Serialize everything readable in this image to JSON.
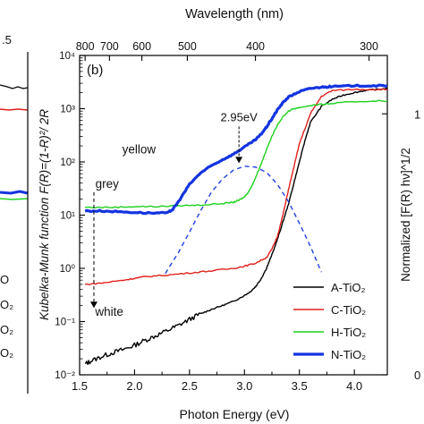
{
  "chart_data": {
    "type": "line",
    "panel_label": "(b)",
    "xlabel": "Photon Energy (eV)",
    "ylabel": "Kubelka-Munk function F(R)=(1-R)²/ 2R",
    "top_axis_label": "Wavelength (nm)",
    "right_axis_label": "Normalized [F(R) hν]^1/2",
    "xlim": [
      1.5,
      4.3
    ],
    "ylim": [
      0.01,
      10000
    ],
    "yscale": "log",
    "x_ticks": [
      "1.5",
      "2.0",
      "2.5",
      "3.0",
      "3.5",
      "4.0"
    ],
    "y_ticks": [
      "10⁻²",
      "10⁻¹",
      "10⁰",
      "10¹",
      "10²",
      "10³",
      "10⁴"
    ],
    "top_ticks": [
      {
        "label": "800",
        "nm": 800
      },
      {
        "label": "700",
        "nm": 700
      },
      {
        "label": "600",
        "nm": 600
      },
      {
        "label": "500",
        "nm": 500
      },
      {
        "label": "400",
        "nm": 400
      },
      {
        "label": "300",
        "nm": 300
      }
    ],
    "right_ticks": [
      "0",
      "1"
    ],
    "legend_placement": "bottom-right",
    "grid": false,
    "series": [
      {
        "name": "A-TiO₂",
        "color": "#000000",
        "width": 1.4,
        "x": [
          1.55,
          1.6,
          1.7,
          1.8,
          1.9,
          2.0,
          2.1,
          2.2,
          2.3,
          2.4,
          2.5,
          2.6,
          2.7,
          2.8,
          2.9,
          3.0,
          3.05,
          3.1,
          3.15,
          3.2,
          3.25,
          3.3,
          3.35,
          3.4,
          3.45,
          3.5,
          3.55,
          3.6,
          3.7,
          3.8,
          3.9,
          4.0,
          4.1,
          4.2,
          4.3
        ],
        "y": [
          0.016,
          0.018,
          0.022,
          0.026,
          0.03,
          0.036,
          0.045,
          0.055,
          0.068,
          0.085,
          0.11,
          0.14,
          0.17,
          0.2,
          0.24,
          0.31,
          0.36,
          0.45,
          0.63,
          1.0,
          1.8,
          3.5,
          7.5,
          16,
          40,
          100,
          250,
          550,
          1100,
          1500,
          1800,
          2000,
          2200,
          2300,
          2400
        ]
      },
      {
        "name": "C-TiO₂",
        "color": "#e0201b",
        "width": 1.4,
        "x": [
          1.55,
          1.7,
          1.9,
          2.0,
          2.1,
          2.3,
          2.5,
          2.7,
          2.9,
          3.0,
          3.1,
          3.2,
          3.25,
          3.3,
          3.35,
          3.4,
          3.45,
          3.5,
          3.6,
          3.7,
          3.8,
          4.0,
          4.2,
          4.3
        ],
        "y": [
          0.5,
          0.53,
          0.6,
          0.65,
          0.7,
          0.75,
          0.82,
          0.9,
          1.0,
          1.1,
          1.25,
          1.6,
          2.3,
          4,
          10,
          30,
          80,
          220,
          800,
          1700,
          2200,
          2300,
          2300,
          2300
        ]
      },
      {
        "name": "H-TiO₂",
        "color": "#1ed11e",
        "width": 1.4,
        "x": [
          1.55,
          1.8,
          2.0,
          2.2,
          2.4,
          2.6,
          2.8,
          2.9,
          2.95,
          3.0,
          3.05,
          3.1,
          3.15,
          3.2,
          3.25,
          3.3,
          3.35,
          3.4,
          3.45,
          3.5,
          3.6,
          3.7,
          3.8,
          4.0,
          4.2,
          4.3
        ],
        "y": [
          14,
          14,
          14.5,
          14.5,
          15,
          15.5,
          16.5,
          17.5,
          19,
          22,
          30,
          50,
          90,
          170,
          300,
          500,
          700,
          900,
          1000,
          1050,
          1150,
          1200,
          1250,
          1350,
          1400,
          1400
        ]
      },
      {
        "name": "N-TiO₂",
        "color": "#1434e0",
        "width": 3.2,
        "x": [
          1.55,
          1.7,
          1.9,
          2.1,
          2.3,
          2.35,
          2.4,
          2.5,
          2.6,
          2.7,
          2.8,
          2.9,
          3.0,
          3.1,
          3.15,
          3.2,
          3.25,
          3.3,
          3.35,
          3.4,
          3.5,
          3.6,
          3.7,
          3.8,
          4.0,
          4.2,
          4.3
        ],
        "y": [
          12,
          12,
          11.5,
          11,
          11,
          13,
          18,
          38,
          62,
          85,
          110,
          140,
          190,
          260,
          330,
          450,
          650,
          950,
          1300,
          1650,
          2100,
          2400,
          2550,
          2600,
          2700,
          2700,
          2700
        ]
      },
      {
        "name": "",
        "color": "#1f3fe0",
        "width": 1.4,
        "dashed": true,
        "x": [
          2.28,
          2.4,
          2.5,
          2.6,
          2.7,
          2.8,
          2.9,
          3.0,
          3.1,
          3.2,
          3.3,
          3.4,
          3.5,
          3.6,
          3.7
        ],
        "y": [
          0.8,
          2.0,
          4.8,
          12,
          27,
          48,
          70,
          83,
          80,
          64,
          38,
          18,
          7,
          2.6,
          0.85
        ]
      }
    ],
    "annotations": [
      {
        "text": "2.95eV",
        "x": 2.95,
        "y": 520,
        "arrow_to": 95
      },
      {
        "text": "yellow",
        "x": 2.04,
        "y": 170
      },
      {
        "text": "grey",
        "x": 1.75,
        "y": 38
      },
      {
        "text": "white",
        "x": 1.77,
        "y": 0.15
      }
    ],
    "grey_white_arrow": {
      "x": 1.63,
      "from": 27,
      "to": 0.18
    },
    "left_panel_fragments": {
      "top_tick": ".5",
      "labels": [
        "O",
        "O₂",
        "O₂",
        "O₂"
      ]
    }
  }
}
